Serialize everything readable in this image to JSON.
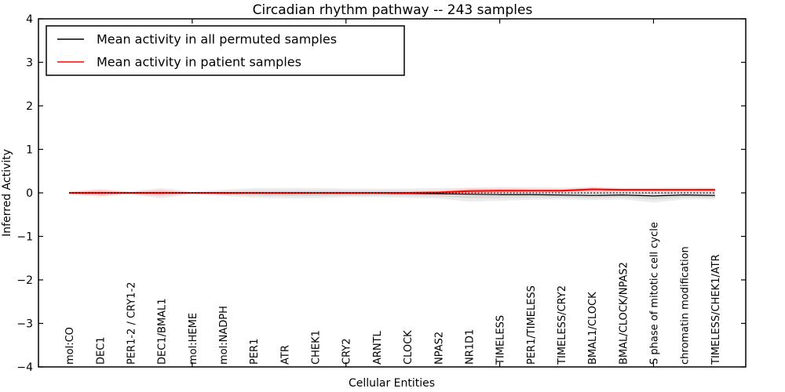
{
  "chart_data": {
    "type": "line",
    "title": "Circadian rhythm pathway -- 243 samples",
    "xlabel": "Cellular Entities",
    "ylabel": "Inferred Activity",
    "ylim": [
      -4,
      4
    ],
    "x_axis_range": [
      0,
      23
    ],
    "x_major_ticks": [
      5,
      10,
      15,
      20
    ],
    "grid": false,
    "legend_position": "upper left",
    "background_color": "#ffffff",
    "axis_color": "#000000",
    "zero_line": {
      "value": 0,
      "style": "dotted",
      "color": "#000000"
    },
    "categories": [
      "mol:CO",
      "DEC1",
      "PER1-2 / CRY1-2",
      "DEC1/BMAL1",
      "mol:HEME",
      "mol:NADPH",
      "PER1",
      "ATR",
      "CHEK1",
      "CRY2",
      "ARNTL",
      "CLOCK",
      "NPAS2",
      "NR1D1",
      "TIMELESS",
      "PER1/TIMELESS",
      "TIMELESS/CRY2",
      "BMAL1/CLOCK",
      "BMAL/CLOCK/NPAS2",
      "S phase of mitotic cell cycle",
      "chromatin modification",
      "TIMELESS/CHEK1/ATR"
    ],
    "yticks": [
      {
        "value": 4,
        "label": "4"
      },
      {
        "value": 3,
        "label": "3"
      },
      {
        "value": 2,
        "label": "2"
      },
      {
        "value": 1,
        "label": "1"
      },
      {
        "value": 0,
        "label": "0"
      },
      {
        "value": -1,
        "label": "−1"
      },
      {
        "value": -2,
        "label": "−2"
      },
      {
        "value": -3,
        "label": "−3"
      },
      {
        "value": -4,
        "label": "−4"
      }
    ],
    "series": [
      {
        "name": "Mean activity in all permuted samples",
        "color": "#000000",
        "band_color_outer": "#e6e6e6",
        "band_color_inner": "#d6d6d6",
        "values": [
          0,
          0,
          0,
          0,
          0,
          -0.01,
          -0.01,
          -0.01,
          -0.01,
          -0.01,
          -0.01,
          -0.015,
          -0.02,
          -0.03,
          -0.04,
          -0.04,
          -0.05,
          -0.06,
          -0.05,
          -0.07,
          -0.05,
          -0.06
        ],
        "band_upper": [
          0.04,
          0.05,
          0.035,
          0.11,
          0.03,
          0.07,
          0.11,
          0.11,
          0.11,
          0.1,
          0.1,
          0.1,
          0.11,
          0.11,
          0.13,
          0.13,
          0.12,
          0.13,
          0.12,
          0.12,
          0.13,
          0.12
        ],
        "band_lower": [
          -0.04,
          -0.05,
          -0.035,
          -0.125,
          -0.03,
          -0.07,
          -0.11,
          -0.125,
          -0.125,
          -0.1,
          -0.1,
          -0.11,
          -0.13,
          -0.2,
          -0.18,
          -0.16,
          -0.15,
          -0.17,
          -0.15,
          -0.22,
          -0.15,
          -0.15
        ]
      },
      {
        "name": "Mean activity in patient samples",
        "color": "#ff0000",
        "band_color_outer": "#ffd9d9",
        "band_color_inner": "#ffadad",
        "values": [
          0,
          0,
          0,
          0,
          0,
          0,
          0,
          0,
          0,
          0,
          0,
          0,
          0.01,
          0.04,
          0.05,
          0.05,
          0.05,
          0.08,
          0.07,
          0.07,
          0.07,
          0.07
        ],
        "band_upper": [
          0.03,
          0.09,
          0.03,
          0.08,
          0.02,
          0.04,
          0.04,
          0.03,
          0.03,
          0.03,
          0.03,
          0.04,
          0.06,
          0.12,
          0.12,
          0.1,
          0.1,
          0.14,
          0.11,
          0.11,
          0.11,
          0.12
        ],
        "band_lower": [
          -0.03,
          -0.09,
          -0.03,
          -0.08,
          -0.02,
          -0.04,
          -0.04,
          -0.03,
          -0.03,
          -0.03,
          -0.03,
          -0.04,
          -0.05,
          -0.05,
          -0.02,
          0,
          0,
          0.02,
          0.02,
          0.03,
          0.03,
          0.02
        ]
      }
    ]
  },
  "legend": {
    "entries": [
      {
        "label": "Mean activity in all permuted samples",
        "color": "#000000"
      },
      {
        "label": "Mean activity in patient samples",
        "color": "#ff0000"
      }
    ]
  }
}
